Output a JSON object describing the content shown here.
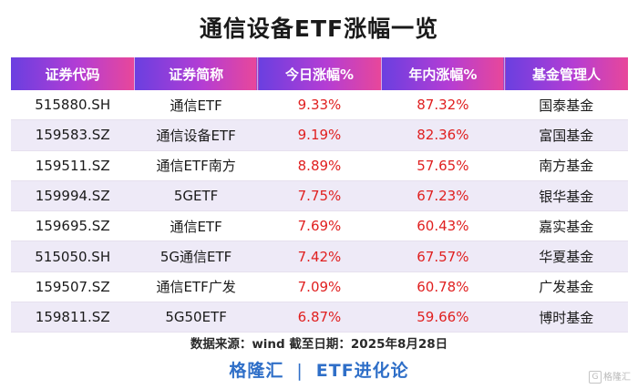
{
  "title": "通信设备ETF涨幅一览",
  "columns": [
    "证券代码",
    "证券简称",
    "今日涨幅%",
    "年内涨幅%",
    "基金管理人"
  ],
  "rows": [
    {
      "code": "515880.SH",
      "name": "通信ETF",
      "today": "9.33%",
      "ytd": "87.32%",
      "manager": "国泰基金"
    },
    {
      "code": "159583.SZ",
      "name": "通信设备ETF",
      "today": "9.19%",
      "ytd": "82.36%",
      "manager": "富国基金"
    },
    {
      "code": "159511.SZ",
      "name": "通信ETF南方",
      "today": "8.89%",
      "ytd": "57.65%",
      "manager": "南方基金"
    },
    {
      "code": "159994.SZ",
      "name": "5GETF",
      "today": "7.75%",
      "ytd": "67.23%",
      "manager": "银华基金"
    },
    {
      "code": "159695.SZ",
      "name": "通信ETF",
      "today": "7.69%",
      "ytd": "60.43%",
      "manager": "嘉实基金"
    },
    {
      "code": "515050.SH",
      "name": "5G通信ETF",
      "today": "7.42%",
      "ytd": "67.57%",
      "manager": "华夏基金"
    },
    {
      "code": "159507.SZ",
      "name": "通信ETF广发",
      "today": "7.09%",
      "ytd": "60.78%",
      "manager": "广发基金"
    },
    {
      "code": "159811.SZ",
      "name": "5G50ETF",
      "today": "6.87%",
      "ytd": "59.66%",
      "manager": "博时基金"
    }
  ],
  "source": "数据来源：wind   截至日期：2025年8月28日",
  "brand": {
    "left": "格隆汇",
    "separator": "|",
    "right": "ETF进化论"
  },
  "watermark": {
    "glyph": "G",
    "text": "格隆汇"
  },
  "colors": {
    "header_start": "#6a3fe0",
    "header_end": "#e8479a",
    "value_red": "#e02020",
    "brand_blue": "#2f6fc8"
  }
}
